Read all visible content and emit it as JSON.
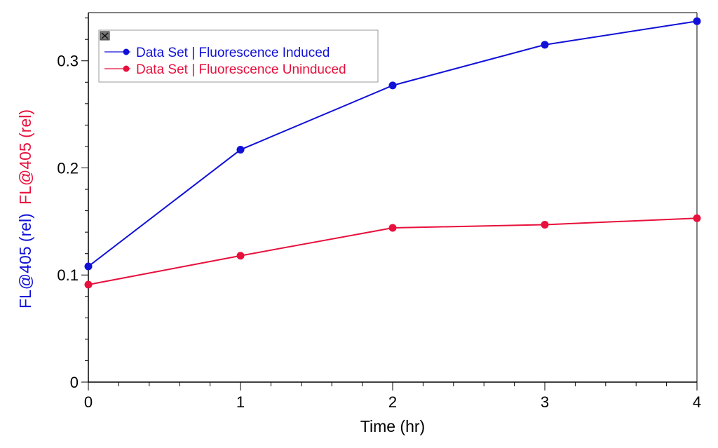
{
  "chart_data": {
    "type": "line",
    "xlabel": "Time  (hr)",
    "ylabel_parts": [
      {
        "text": "FL@405  (rel)",
        "color": "#1010d8"
      },
      {
        "text": "FL@405  (rel)",
        "color": "#e8103c"
      }
    ],
    "xlim": [
      0,
      4
    ],
    "ylim": [
      0,
      0.345
    ],
    "x_ticks": [
      0,
      1,
      2,
      3,
      4
    ],
    "y_ticks": [
      0,
      0.1,
      0.2,
      0.3
    ],
    "x_tick_labels": [
      "0",
      "1",
      "2",
      "3",
      "4"
    ],
    "y_tick_labels": [
      "0",
      "0.1",
      "0.2",
      "0.3"
    ],
    "grid": false,
    "legend_position": "top-left",
    "series": [
      {
        "name": "Data Set | Fluorescence Induced",
        "color": "#1010d8",
        "x": [
          0,
          1,
          2,
          3,
          4
        ],
        "y": [
          0.108,
          0.217,
          0.277,
          0.315,
          0.337
        ]
      },
      {
        "name": "Data Set | Fluorescence Uninduced",
        "color": "#e8103c",
        "x": [
          0,
          1,
          2,
          3,
          4
        ],
        "y": [
          0.091,
          0.118,
          0.144,
          0.147,
          0.153
        ]
      }
    ]
  },
  "legend": {
    "close_icon": "close-icon"
  }
}
